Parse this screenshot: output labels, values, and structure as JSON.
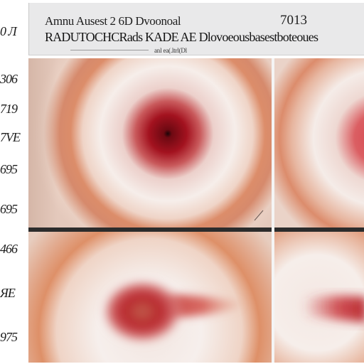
{
  "header": {
    "line1": "Amnu Ausest 2 6D Dvoonoal",
    "number": "7013",
    "line2": "RADUTOCHCRads KADE AE Dlovoeousbasestboteoues",
    "line3": "anl ea(.ltrl(Dl"
  },
  "side_labels": [
    "0 Л",
    "306",
    "719",
    "7VE",
    "695",
    "695",
    "466",
    "ЯЕ",
    "975"
  ],
  "panels": [
    {
      "name": "top-left",
      "ring_color": "#d88a6a",
      "core_color": "#a3121f"
    },
    {
      "name": "top-right",
      "ring_color": "#dc8c6c",
      "core_color": "#d43f4a"
    },
    {
      "name": "bottom-left",
      "ring_color": "#de9068",
      "core_color": "#b8262c"
    },
    {
      "name": "bottom-right",
      "ring_color": "#dc8e6a",
      "core_color": "#c9363b"
    }
  ]
}
